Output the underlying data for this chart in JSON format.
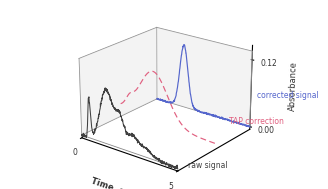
{
  "xlabel": "Time, s",
  "ylabel": "Absorbance",
  "raw_color": "#404040",
  "tap_color": "#e06080",
  "corrected_color": "#5566cc",
  "label_raw": "raw signal",
  "label_tap": "TAP correction",
  "label_corrected": "corrected signal",
  "xlim": [
    0,
    5
  ],
  "zlim": [
    -0.005,
    0.145
  ],
  "yticks_vals": [
    0.0,
    0.12
  ],
  "elev": 22,
  "azim": -52
}
